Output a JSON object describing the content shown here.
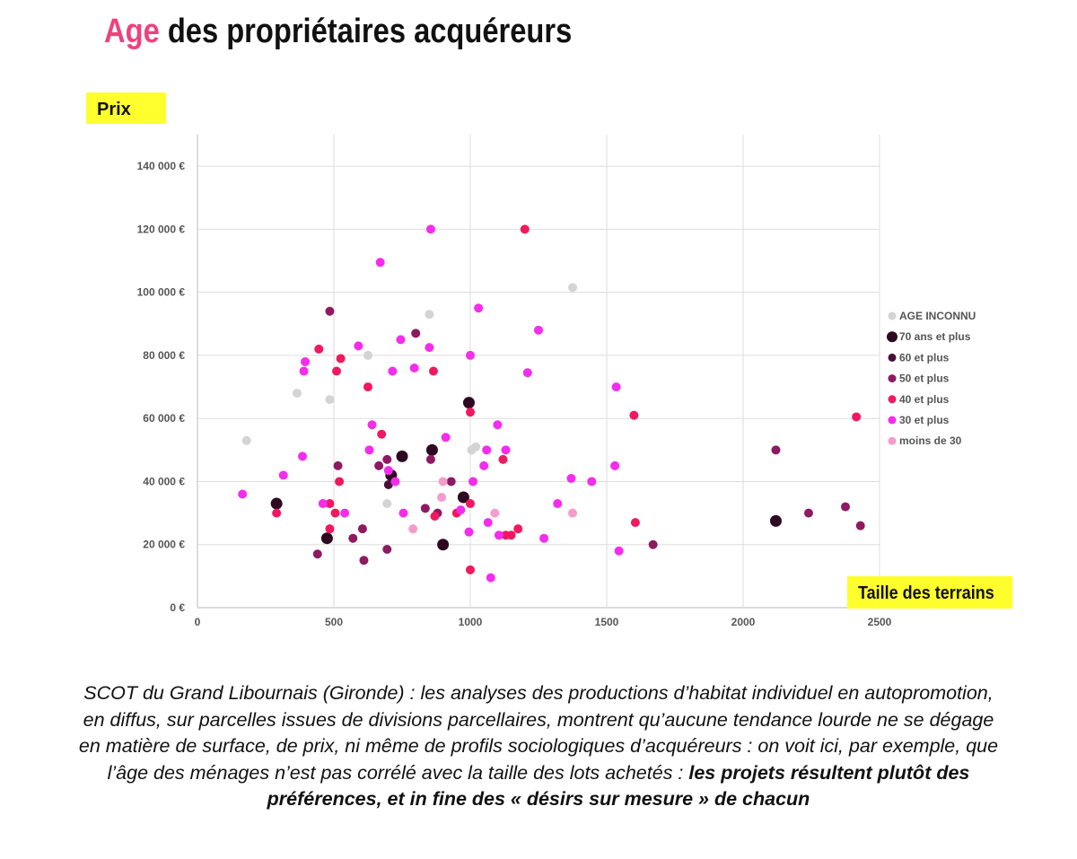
{
  "title": {
    "highlight": "Age",
    "rest": "des propriétaires acquéreurs",
    "highlight_color": "#f0417c"
  },
  "yaxis_tag": "Prix",
  "xaxis_tag": "Taille des terrains",
  "tag_color": "#ffff2e",
  "caption": {
    "normal": "SCOT du Grand Libournais (Gironde) : les analyses des productions d’habitat individuel en autopromotion, en diffus, sur parcelles issues de divisions parcellaires, montrent qu’aucune tendance lourde ne se dégage en matière de surface, de prix, ni même de profils sociologiques d’acquéreurs : on voit ici, par exemple, que l’âge des ménages n’est pas corrélé avec la taille des lots achetés : ",
    "bold": "les projets résultent plutôt des préférences, et in fine des « désirs sur mesure » de chacun"
  },
  "chart_data": {
    "type": "scatter",
    "xlabel": "Taille des terrains",
    "ylabel": "Prix",
    "xlim": [
      0,
      2500
    ],
    "ylim": [
      0,
      150000
    ],
    "x_ticks": [
      {
        "value": 0,
        "label": "0"
      },
      {
        "value": 500,
        "label": "500"
      },
      {
        "value": 1000,
        "label": "1000"
      },
      {
        "value": 1500,
        "label": "1500"
      },
      {
        "value": 2000,
        "label": "2000"
      },
      {
        "value": 2500,
        "label": "2500"
      }
    ],
    "y_ticks": [
      {
        "value": 0,
        "label": "0 €"
      },
      {
        "value": 20000,
        "label": "20 000 €"
      },
      {
        "value": 40000,
        "label": "40 000 €"
      },
      {
        "value": 60000,
        "label": "60 000 €"
      },
      {
        "value": 80000,
        "label": "80 000 €"
      },
      {
        "value": 100000,
        "label": "100 000 €"
      },
      {
        "value": 120000,
        "label": "120 000 €"
      },
      {
        "value": 140000,
        "label": "140 000 €"
      }
    ],
    "grid": true,
    "legend_position": "right",
    "series": [
      {
        "name": "AGE INCONNU",
        "color": "#d4d4d4",
        "size": "small",
        "points": [
          [
            180,
            53000
          ],
          [
            365,
            68000
          ],
          [
            485,
            66000
          ],
          [
            625,
            80000
          ],
          [
            695,
            33000
          ],
          [
            850,
            93000
          ],
          [
            1005,
            50000
          ],
          [
            1020,
            51000
          ],
          [
            1375,
            101500
          ]
        ]
      },
      {
        "name": "70 ans et plus",
        "color": "#2e0a22",
        "size": "large",
        "points": [
          [
            290,
            33000
          ],
          [
            475,
            22000
          ],
          [
            710,
            42000
          ],
          [
            750,
            48000
          ],
          [
            860,
            50000
          ],
          [
            900,
            20000
          ],
          [
            975,
            35000
          ],
          [
            995,
            65000
          ],
          [
            2120,
            27500
          ]
        ]
      },
      {
        "name": "60 et plus",
        "color": "#4a0f38",
        "size": "small",
        "points": [
          [
            700,
            39000
          ]
        ]
      },
      {
        "name": "50 et plus",
        "color": "#8e1a62",
        "size": "small",
        "points": [
          [
            440,
            17000
          ],
          [
            485,
            94000
          ],
          [
            515,
            45000
          ],
          [
            570,
            22000
          ],
          [
            605,
            25000
          ],
          [
            610,
            15000
          ],
          [
            665,
            45000
          ],
          [
            695,
            47000
          ],
          [
            695,
            18500
          ],
          [
            800,
            87000
          ],
          [
            835,
            31500
          ],
          [
            855,
            47000
          ],
          [
            880,
            30000
          ],
          [
            930,
            40000
          ],
          [
            2120,
            50000
          ],
          [
            2240,
            30000
          ],
          [
            2375,
            32000
          ],
          [
            2430,
            26000
          ],
          [
            1670,
            20000
          ]
        ]
      },
      {
        "name": "40 et plus",
        "color": "#f0195f",
        "size": "small",
        "points": [
          [
            290,
            30000
          ],
          [
            445,
            82000
          ],
          [
            485,
            33000
          ],
          [
            485,
            25000
          ],
          [
            505,
            30000
          ],
          [
            510,
            75000
          ],
          [
            520,
            40000
          ],
          [
            525,
            79000
          ],
          [
            625,
            70000
          ],
          [
            675,
            55000
          ],
          [
            865,
            75000
          ],
          [
            870,
            29000
          ],
          [
            950,
            30000
          ],
          [
            1000,
            62000
          ],
          [
            1000,
            33000
          ],
          [
            1000,
            12000
          ],
          [
            1120,
            47000
          ],
          [
            1130,
            23000
          ],
          [
            1150,
            23000
          ],
          [
            1175,
            25000
          ],
          [
            1200,
            120000
          ],
          [
            1600,
            61000
          ],
          [
            1605,
            27000
          ],
          [
            2415,
            60500
          ]
        ]
      },
      {
        "name": "30 et plus",
        "color": "#f52ced",
        "size": "small",
        "points": [
          [
            165,
            36000
          ],
          [
            315,
            42000
          ],
          [
            385,
            48000
          ],
          [
            390,
            75000
          ],
          [
            395,
            78000
          ],
          [
            460,
            33000
          ],
          [
            540,
            30000
          ],
          [
            590,
            83000
          ],
          [
            630,
            50000
          ],
          [
            640,
            58000
          ],
          [
            670,
            109500
          ],
          [
            700,
            43500
          ],
          [
            715,
            75000
          ],
          [
            725,
            40000
          ],
          [
            745,
            85000
          ],
          [
            755,
            30000
          ],
          [
            795,
            76000
          ],
          [
            850,
            82500
          ],
          [
            855,
            120000
          ],
          [
            910,
            54000
          ],
          [
            965,
            31000
          ],
          [
            995,
            24000
          ],
          [
            1000,
            80000
          ],
          [
            1010,
            40000
          ],
          [
            1030,
            95000
          ],
          [
            1050,
            45000
          ],
          [
            1060,
            50000
          ],
          [
            1065,
            27000
          ],
          [
            1075,
            9500
          ],
          [
            1100,
            58000
          ],
          [
            1105,
            23000
          ],
          [
            1130,
            50000
          ],
          [
            1250,
            88000
          ],
          [
            1270,
            22000
          ],
          [
            1320,
            33000
          ],
          [
            1370,
            41000
          ],
          [
            1445,
            40000
          ],
          [
            1530,
            45000
          ],
          [
            1535,
            70000
          ],
          [
            1545,
            18000
          ],
          [
            1210,
            74500
          ]
        ]
      },
      {
        "name": "moins de 30",
        "color": "#f59ccc",
        "size": "small",
        "points": [
          [
            790,
            25000
          ],
          [
            895,
            35000
          ],
          [
            900,
            40000
          ],
          [
            1090,
            30000
          ],
          [
            1375,
            30000
          ]
        ]
      }
    ]
  }
}
